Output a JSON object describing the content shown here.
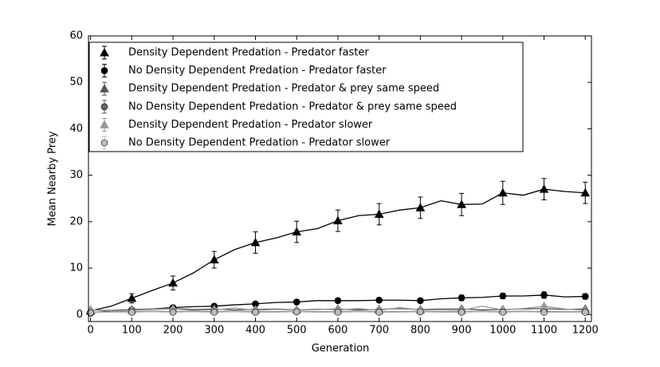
{
  "chart_data": {
    "type": "line",
    "x_label": "Generation",
    "y_label": "Mean Nearby Prey",
    "x": [
      0,
      50,
      100,
      150,
      200,
      250,
      300,
      350,
      400,
      450,
      500,
      550,
      600,
      650,
      700,
      750,
      800,
      850,
      900,
      950,
      1000,
      1050,
      1100,
      1150,
      1200
    ],
    "xlim": [
      -5,
      1215
    ],
    "ylim": [
      -1.5,
      60
    ],
    "xticks": [
      0,
      100,
      200,
      300,
      400,
      500,
      600,
      700,
      800,
      900,
      1000,
      1100,
      1200
    ],
    "yticks": [
      0,
      10,
      20,
      30,
      40,
      50,
      60
    ],
    "legend": "upper left",
    "series": [
      {
        "name": "Density Dependent Predation - Predator faster",
        "color": "#000000",
        "marker": "triangle",
        "values": [
          0.8,
          1.8,
          3.5,
          5.2,
          6.8,
          9.0,
          11.8,
          14.0,
          15.5,
          16.5,
          17.8,
          18.5,
          20.2,
          21.3,
          21.6,
          22.5,
          23.0,
          24.5,
          23.7,
          23.8,
          26.2,
          25.7,
          27.0,
          26.5,
          26.2
        ],
        "errors": [
          0.3,
          null,
          1.0,
          null,
          1.5,
          null,
          1.8,
          null,
          2.3,
          null,
          2.3,
          null,
          2.3,
          null,
          2.3,
          null,
          2.3,
          null,
          2.4,
          null,
          2.5,
          null,
          2.3,
          null,
          2.3
        ]
      },
      {
        "name": "No Density Dependent Predation - Predator faster",
        "color": "#000000",
        "marker": "circle",
        "values": [
          0.3,
          0.8,
          1.0,
          1.2,
          1.5,
          1.7,
          1.8,
          2.1,
          2.3,
          2.6,
          2.7,
          3.0,
          3.0,
          3.0,
          3.1,
          3.1,
          3.0,
          3.4,
          3.6,
          3.7,
          4.0,
          4.0,
          4.2,
          3.8,
          3.9
        ],
        "errors": [
          0.2,
          null,
          0.3,
          null,
          0.3,
          null,
          0.4,
          null,
          0.5,
          null,
          0.5,
          null,
          0.5,
          null,
          0.5,
          null,
          0.5,
          null,
          0.6,
          null,
          0.6,
          null,
          0.7,
          null,
          0.6
        ]
      },
      {
        "name": "Density Dependent Predation - Predator & prey same speed",
        "color": "#555555",
        "marker": "triangle",
        "values": [
          1.0,
          0.9,
          1.1,
          1.2,
          1.3,
          1.1,
          1.2,
          1.0,
          1.1,
          1.2,
          1.0,
          1.1,
          1.2,
          1.0,
          1.1,
          1.3,
          1.1,
          1.2,
          1.2,
          1.0,
          1.1,
          1.2,
          1.3,
          1.1,
          1.2
        ],
        "errors": [
          0.3,
          null,
          0.3,
          null,
          0.3,
          null,
          0.3,
          null,
          0.3,
          null,
          0.3,
          null,
          0.3,
          null,
          0.3,
          null,
          0.3,
          null,
          0.3,
          null,
          0.3,
          null,
          0.3,
          null,
          0.3
        ]
      },
      {
        "name": "No Density Dependent Predation - Predator & prey same speed",
        "color": "#666666",
        "marker": "circle",
        "values": [
          0.5,
          0.6,
          0.6,
          0.7,
          0.6,
          0.7,
          0.6,
          0.7,
          0.6,
          0.6,
          0.7,
          0.6,
          0.6,
          0.7,
          0.6,
          0.6,
          0.7,
          0.6,
          0.6,
          0.7,
          0.6,
          0.7,
          0.6,
          0.6,
          0.6
        ],
        "errors": [
          0.2,
          null,
          0.2,
          null,
          0.2,
          null,
          0.2,
          null,
          0.2,
          null,
          0.2,
          null,
          0.2,
          null,
          0.2,
          null,
          0.2,
          null,
          0.2,
          null,
          0.2,
          null,
          0.2,
          null,
          0.2
        ]
      },
      {
        "name": "Density Dependent Predation - Predator slower",
        "color": "#999999",
        "marker": "triangle",
        "values": [
          1.0,
          0.8,
          0.9,
          1.1,
          1.2,
          0.9,
          1.0,
          1.4,
          0.9,
          1.1,
          1.0,
          1.2,
          1.0,
          1.3,
          0.9,
          1.5,
          1.0,
          1.0,
          0.9,
          1.8,
          1.0,
          1.3,
          1.8,
          1.2,
          0.9
        ],
        "errors": [
          0.3,
          null,
          0.3,
          null,
          0.3,
          null,
          0.3,
          null,
          0.3,
          null,
          0.3,
          null,
          0.3,
          null,
          0.3,
          null,
          0.3,
          null,
          0.3,
          null,
          0.3,
          null,
          0.3,
          null,
          0.3
        ]
      },
      {
        "name": "No Density Dependent Predation - Predator slower",
        "color": "#bbbbbb",
        "marker": "circle",
        "values": [
          0.4,
          0.5,
          0.5,
          0.6,
          0.5,
          0.6,
          0.5,
          0.6,
          0.5,
          0.5,
          0.6,
          0.5,
          0.5,
          0.6,
          0.5,
          0.5,
          0.6,
          0.5,
          0.5,
          0.6,
          0.5,
          0.6,
          0.5,
          0.5,
          0.5
        ],
        "errors": [
          0.2,
          null,
          0.2,
          null,
          0.2,
          null,
          0.2,
          null,
          0.2,
          null,
          0.2,
          null,
          0.2,
          null,
          0.2,
          null,
          0.2,
          null,
          0.2,
          null,
          0.2,
          null,
          0.2,
          null,
          0.2
        ]
      }
    ]
  }
}
